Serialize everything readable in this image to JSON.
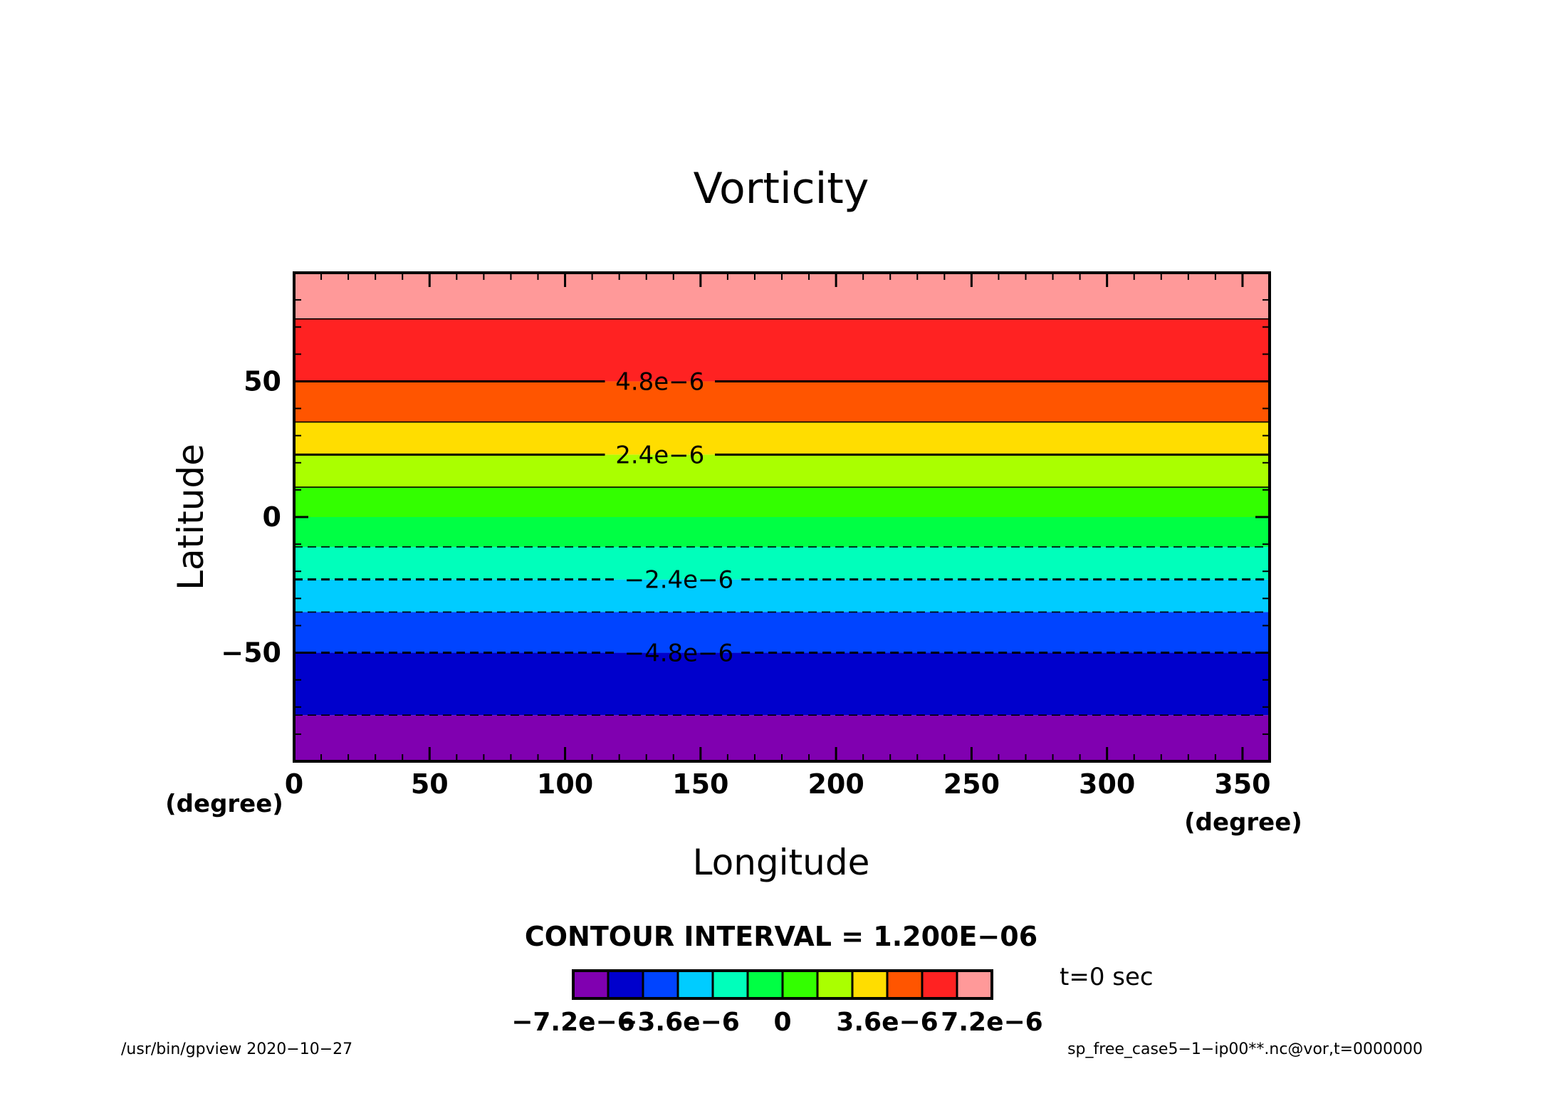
{
  "chart_data": {
    "type": "heatmap",
    "title": "Vorticity",
    "xlabel": "Longitude",
    "ylabel": "Latitude",
    "x_unit": "(degree)",
    "y_unit": "(degree)",
    "xlim": [
      0,
      360
    ],
    "ylim": [
      -90,
      90
    ],
    "x_ticks": [
      0,
      50,
      100,
      150,
      200,
      250,
      300,
      350
    ],
    "x_tick_labels": [
      "0",
      "50",
      "100",
      "150",
      "200",
      "250",
      "300",
      "350"
    ],
    "y_ticks": [
      -50,
      0,
      50
    ],
    "y_tick_labels": [
      "−50",
      "0",
      "50"
    ],
    "bands": [
      {
        "lat_min": -90,
        "lat_max": -73,
        "color": "#8000b0"
      },
      {
        "lat_min": -73,
        "lat_max": -50,
        "color": "#0000cc"
      },
      {
        "lat_min": -50,
        "lat_max": -35,
        "color": "#0044ff"
      },
      {
        "lat_min": -35,
        "lat_max": -23,
        "color": "#00ccff"
      },
      {
        "lat_min": -23,
        "lat_max": -11,
        "color": "#00ffbb"
      },
      {
        "lat_min": -11,
        "lat_max": 0,
        "color": "#00ff44"
      },
      {
        "lat_min": 0,
        "lat_max": 11,
        "color": "#33ff00"
      },
      {
        "lat_min": 11,
        "lat_max": 23,
        "color": "#aaff00"
      },
      {
        "lat_min": 23,
        "lat_max": 35,
        "color": "#ffdd00"
      },
      {
        "lat_min": 35,
        "lat_max": 50,
        "color": "#ff5500"
      },
      {
        "lat_min": 50,
        "lat_max": 73,
        "color": "#ff2222"
      },
      {
        "lat_min": 73,
        "lat_max": 90,
        "color": "#ff9999"
      }
    ],
    "contours": [
      {
        "lat": -73,
        "dashed": true,
        "bold": false,
        "label": ""
      },
      {
        "lat": -50,
        "dashed": true,
        "bold": true,
        "label": "−4.8e−6",
        "label_lon": 142
      },
      {
        "lat": -35,
        "dashed": true,
        "bold": false,
        "label": ""
      },
      {
        "lat": -23,
        "dashed": true,
        "bold": true,
        "label": "−2.4e−6",
        "label_lon": 142
      },
      {
        "lat": -11,
        "dashed": true,
        "bold": false,
        "label": ""
      },
      {
        "lat": 11,
        "dashed": false,
        "bold": false,
        "label": ""
      },
      {
        "lat": 23,
        "dashed": false,
        "bold": true,
        "label": "2.4e−6",
        "label_lon": 135
      },
      {
        "lat": 35,
        "dashed": false,
        "bold": false,
        "label": ""
      },
      {
        "lat": 50,
        "dashed": false,
        "bold": true,
        "label": "4.8e−6",
        "label_lon": 135
      },
      {
        "lat": 73,
        "dashed": false,
        "bold": false,
        "label": ""
      }
    ],
    "contour_interval_text": "CONTOUR INTERVAL = 1.200E−06",
    "colorbar": {
      "colors": [
        "#8000b0",
        "#0000cc",
        "#0044ff",
        "#00ccff",
        "#00ffbb",
        "#00ff44",
        "#33ff00",
        "#aaff00",
        "#ffdd00",
        "#ff5500",
        "#ff2222",
        "#ff9999"
      ],
      "tick_labels": [
        "−7.2e−6",
        "−3.6e−6",
        "0",
        "3.6e−6",
        "7.2e−6"
      ],
      "tick_values": [
        -7.2e-06,
        -3.6e-06,
        0,
        3.6e-06,
        7.2e-06
      ],
      "range": [
        -7.2e-06,
        7.2e-06
      ]
    },
    "time_text": "t=0 sec",
    "footer_left": "/usr/bin/gpview   2020−10−27",
    "footer_right": "sp_free_case5−1−ip00**.nc@vor,t=0000000"
  }
}
